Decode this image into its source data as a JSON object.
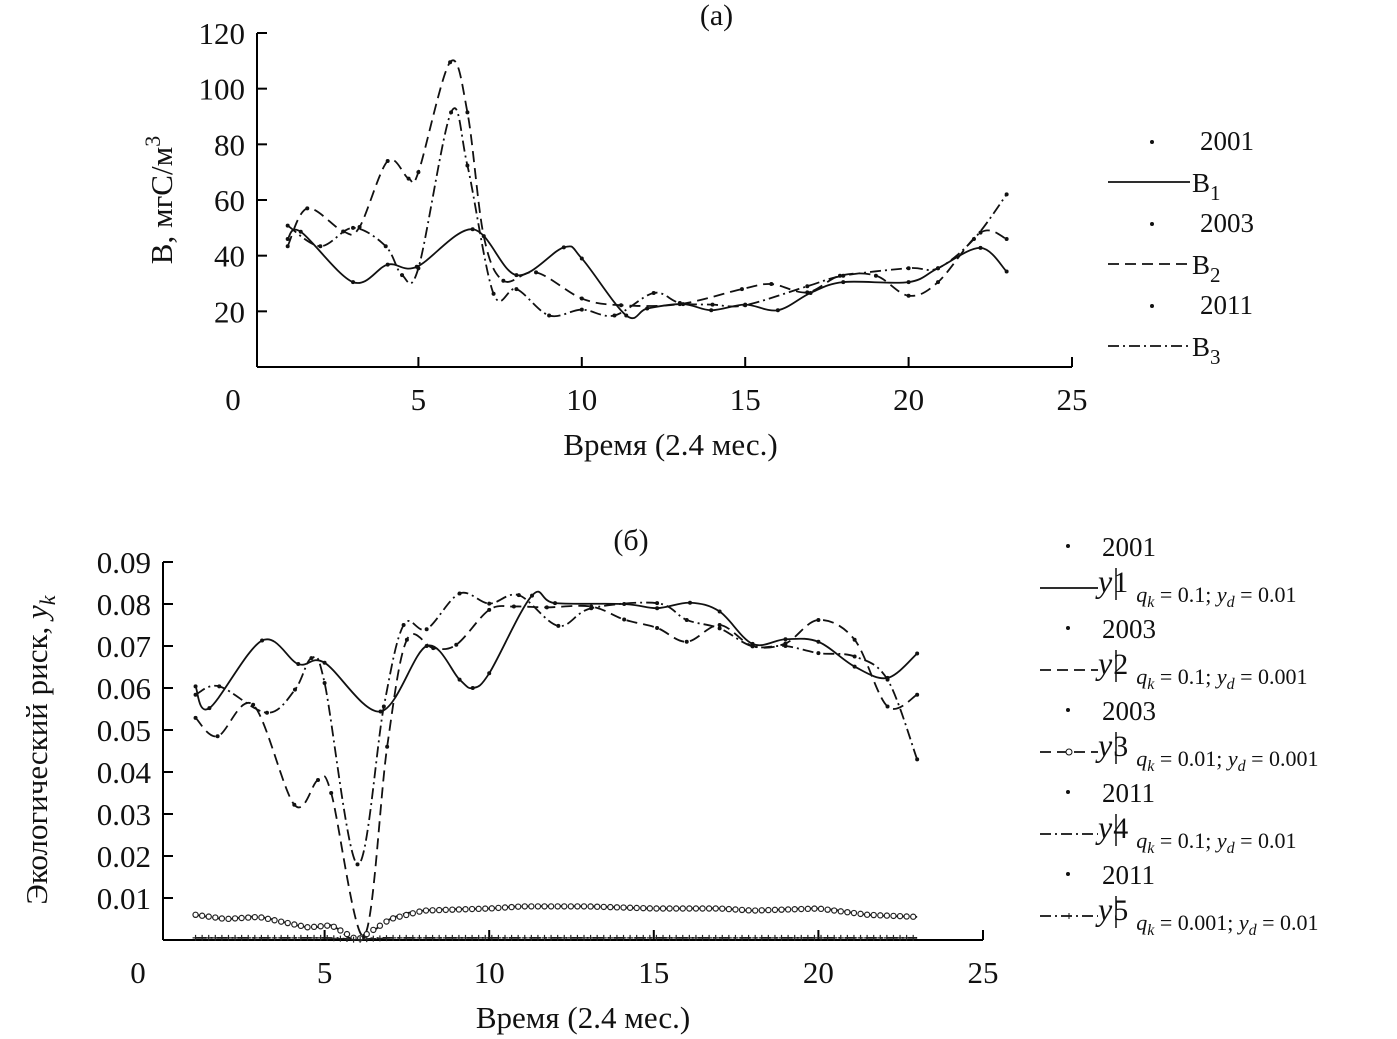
{
  "chart_data": [
    {
      "type": "line",
      "title": "(а)",
      "xlabel": "Время (2.4 мес.)",
      "ylabel": "B, мгС/м",
      "ylabel_sup": "3",
      "xlim": [
        0,
        25
      ],
      "ylim": [
        0,
        120
      ],
      "xticks": [
        "0",
        "5",
        "10",
        "15",
        "20",
        "25"
      ],
      "yticks": [
        "20",
        "40",
        "60",
        "80",
        "100",
        "120"
      ],
      "grid": false,
      "legend_position": "right",
      "series": [
        {
          "name": "B1",
          "year": "2001",
          "label": "B",
          "sub": "1",
          "style": "solid",
          "x": [
            1.0,
            1.4,
            3.0,
            4.06,
            4.95,
            6.66,
            8.0,
            9.45,
            10.0,
            11.36,
            12.0,
            13.1,
            13.96,
            15.0,
            16.0,
            17.0,
            18.0,
            20.0,
            20.9,
            22.2,
            23.0
          ],
          "y": [
            46,
            48.6,
            30.5,
            36.8,
            36,
            49.5,
            33,
            43,
            39,
            18.5,
            21,
            22.6,
            20.4,
            22.4,
            20.4,
            26.6,
            30.5,
            30.5,
            35.5,
            42.8,
            34.3
          ]
        },
        {
          "name": "B2",
          "year": "2003",
          "label": "B",
          "sub": "2",
          "style": "dashed",
          "x": [
            1.0,
            1.6,
            2.7,
            3.2,
            4.06,
            4.7,
            5.0,
            5.97,
            6.5,
            7.0,
            7.6,
            8.6,
            10.0,
            11.2,
            13.0,
            14.9,
            15.8,
            16.9,
            17.9,
            19.0,
            20.0,
            20.9,
            22.2,
            23.0
          ],
          "y": [
            43.4,
            57,
            48.7,
            50.3,
            74,
            67.7,
            70,
            109.5,
            91.5,
            47,
            31,
            34,
            24.6,
            22.2,
            22.6,
            28,
            29.8,
            26.8,
            32.8,
            32.8,
            25.6,
            30.5,
            48.3,
            46
          ]
        },
        {
          "name": "B3",
          "year": "2011",
          "label": "B",
          "sub": "3",
          "style": "dashdot",
          "x": [
            1.0,
            2.0,
            3.0,
            4.0,
            4.5,
            5.0,
            6.0,
            6.5,
            7.3,
            8.0,
            9.0,
            10.0,
            11.0,
            12.2,
            13.0,
            14.0,
            15.0,
            16.9,
            18.0,
            20.0,
            20.9,
            22.0,
            23.0
          ],
          "y": [
            50.8,
            43.4,
            50,
            43.4,
            33,
            35.5,
            91.5,
            72.4,
            26.3,
            28,
            18.5,
            20.6,
            18.5,
            26.6,
            23,
            22.4,
            22.2,
            29,
            32.8,
            35.5,
            35.5,
            46,
            62
          ]
        }
      ]
    },
    {
      "type": "line",
      "title": "(б)",
      "xlabel": "Время (2.4 мес.)",
      "ylabel": "Экологический риск, ",
      "ylabel_var": "y",
      "ylabel_sub": "k",
      "xlim": [
        0,
        25
      ],
      "ylim": [
        0,
        0.09
      ],
      "xticks": [
        "0",
        "5",
        "10",
        "15",
        "20",
        "25"
      ],
      "yticks": [
        "0.01",
        "0.02",
        "0.03",
        "0.04",
        "0.05",
        "0.06",
        "0.07",
        "0.08",
        "0.09"
      ],
      "grid": false,
      "legend_position": "right",
      "series": [
        {
          "name": "y1",
          "year": "2001",
          "var": "y",
          "idx": "1",
          "q": "0.1",
          "yd": "0.01",
          "style": "solid",
          "x": [
            1.08,
            1.5,
            3.1,
            4.2,
            5.0,
            6.7,
            8.1,
            9.1,
            9.5,
            10.0,
            11.3,
            12.0,
            14.1,
            15.1,
            16.1,
            17.0,
            18.0,
            19.0,
            20.0,
            21.1,
            22.1,
            23.0
          ],
          "y": [
            0.0604,
            0.0552,
            0.0713,
            0.0657,
            0.066,
            0.0544,
            0.07,
            0.062,
            0.06,
            0.0635,
            0.082,
            0.0802,
            0.08,
            0.079,
            0.0803,
            0.0782,
            0.0705,
            0.0716,
            0.071,
            0.0651,
            0.0624,
            0.0682
          ]
        },
        {
          "name": "y2",
          "year": "2003",
          "var": "y",
          "idx": "2",
          "q": "0.1",
          "yd": "0.001",
          "style": "dashed",
          "x": [
            1.08,
            1.75,
            2.83,
            4.08,
            4.8,
            5.2,
            6.2,
            6.9,
            7.5,
            8.3,
            9.0,
            10.0,
            10.75,
            11.75,
            13.1,
            14.1,
            15.1,
            16.0,
            17.0,
            18.0,
            19.0,
            20.0,
            21.1,
            22.1,
            23.0
          ],
          "y": [
            0.0529,
            0.0485,
            0.056,
            0.0322,
            0.0381,
            0.035,
            0.001,
            0.046,
            0.0715,
            0.0695,
            0.0703,
            0.0786,
            0.0794,
            0.0792,
            0.0794,
            0.0763,
            0.0743,
            0.071,
            0.075,
            0.07,
            0.0706,
            0.0762,
            0.0715,
            0.0556,
            0.0584
          ]
        },
        {
          "name": "y3",
          "year": "2003",
          "var": "y",
          "idx": "3",
          "q": "0.01",
          "yd": "0.001",
          "style": "dashed-circle",
          "x": [
            1.08,
            2.0,
            3.0,
            4.5,
            5.2,
            6.0,
            7.0,
            8.0,
            10.0,
            11.0,
            13.0,
            15.0,
            17.0,
            18.0,
            20.0,
            21.5,
            23.0
          ],
          "y": [
            0.006,
            0.005,
            0.0055,
            0.003,
            0.0035,
            0.0,
            0.005,
            0.007,
            0.0075,
            0.008,
            0.008,
            0.0075,
            0.0075,
            0.007,
            0.0075,
            0.006,
            0.0055
          ]
        },
        {
          "name": "y4",
          "year": "2011",
          "var": "y",
          "idx": "4",
          "q": "0.1",
          "yd": "0.01",
          "style": "dashdot",
          "x": [
            1.08,
            1.8,
            3.25,
            4.1,
            4.6,
            5.0,
            6.0,
            6.8,
            7.4,
            8.1,
            9.1,
            10.0,
            10.9,
            12.1,
            13.1,
            15.1,
            16.0,
            17.0,
            18.0,
            19.0,
            20.0,
            21.1,
            22.1,
            23.0
          ],
          "y": [
            0.0584,
            0.0604,
            0.0541,
            0.0596,
            0.0671,
            0.0612,
            0.018,
            0.0556,
            0.075,
            0.074,
            0.0825,
            0.0801,
            0.0821,
            0.0748,
            0.079,
            0.0802,
            0.0762,
            0.0742,
            0.0699,
            0.07,
            0.0683,
            0.0675,
            0.062,
            0.043
          ]
        },
        {
          "name": "y5",
          "year": "2011",
          "var": "y",
          "idx": "5",
          "q": "0.001",
          "yd": "0.01",
          "style": "dashdot-plus",
          "x": [
            1.08,
            5.0,
            5.6,
            6.0,
            6.4,
            7.0,
            12.0,
            18.0,
            23.0
          ],
          "y": [
            0.0005,
            0.0005,
            0.0003,
            0.0,
            0.0003,
            0.0005,
            0.0005,
            0.0005,
            0.0005
          ]
        }
      ]
    }
  ]
}
